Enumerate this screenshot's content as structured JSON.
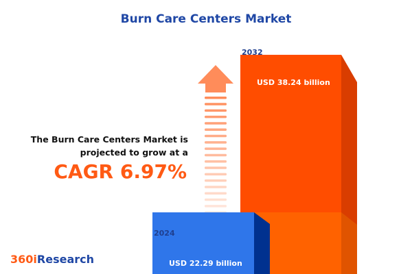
{
  "title": "Burn Care Centers Market",
  "lead_line1": "The Burn Care Centers Market is",
  "lead_line2": "projected to grow at a",
  "cagr": "CAGR 6.97%",
  "logo": {
    "part1": "360i",
    "part2": "Research"
  },
  "colors": {
    "bar_2024": "#2f76ea",
    "bar_2032": "#ff4d00",
    "title": "#1f47a5",
    "accent": "#ff5a14"
  },
  "chart_data": {
    "type": "bar",
    "categories": [
      "2024",
      "2032"
    ],
    "values": [
      22.29,
      38.24
    ],
    "labels": [
      "USD 22.29 billion",
      "USD 38.24 billion"
    ],
    "unit": "USD billion"
  }
}
